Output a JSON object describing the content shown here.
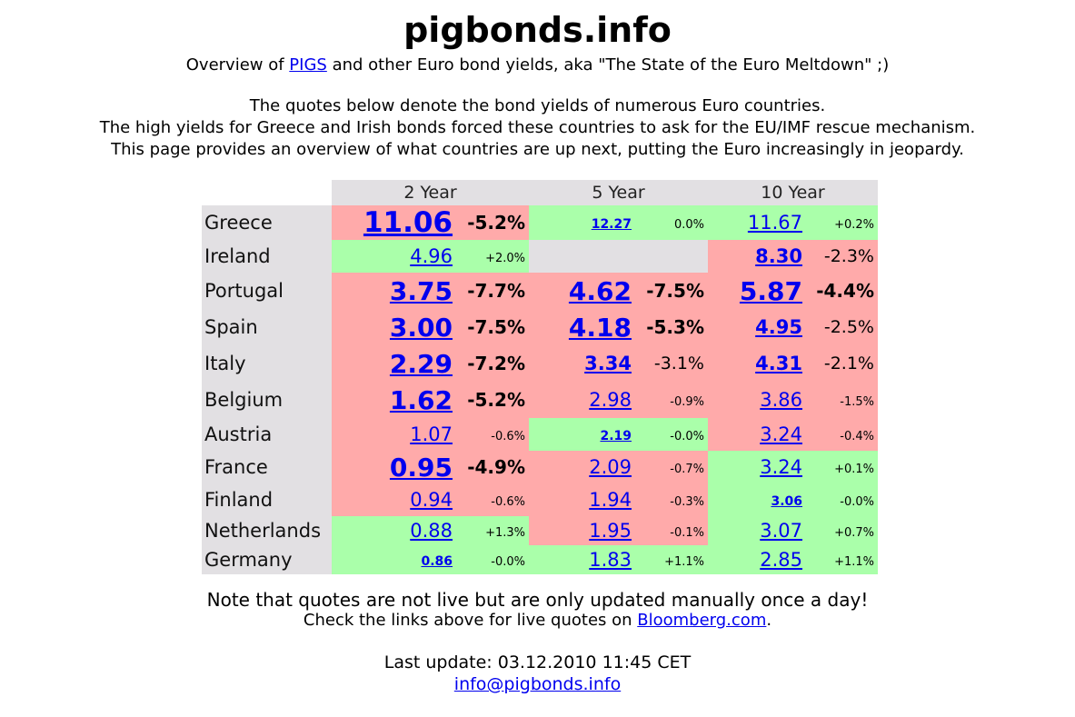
{
  "header": {
    "title": "pigbonds.info",
    "subtitle_prefix": "Overview of ",
    "subtitle_link": "PIGS",
    "subtitle_suffix": " and other Euro bond yields, aka \"The State of the Euro Meltdown\" ;)"
  },
  "intro": [
    "The quotes below denote the bond yields of numerous Euro countries.",
    "The high yields for Greece and Irish bonds forced these countries to ask for the EU/IMF rescue mechanism.",
    "This page provides an overview of what countries are up next, putting the Euro increasingly in jeopardy."
  ],
  "colors": {
    "red": "#ffaaaa",
    "green": "#aaffaa",
    "grey": "#e2e0e3",
    "link": "#0000ee"
  },
  "table": {
    "headers": [
      "2 Year",
      "5 Year",
      "10 Year"
    ],
    "rows": [
      {
        "country": "Greece",
        "y2": {
          "value": "11.06",
          "change": "-5.2%",
          "bg": "red"
        },
        "y5": {
          "value": "12.27",
          "change": "0.0%",
          "bg": "green"
        },
        "y10": {
          "value": "11.67",
          "change": "+0.2%",
          "bg": "green"
        }
      },
      {
        "country": "Ireland",
        "y2": {
          "value": "4.96",
          "change": "+2.0%",
          "bg": "green"
        },
        "y5": {
          "value": "",
          "change": "",
          "bg": "grey"
        },
        "y10": {
          "value": "8.30",
          "change": "-2.3%",
          "bg": "red"
        }
      },
      {
        "country": "Portugal",
        "y2": {
          "value": "3.75",
          "change": "-7.7%",
          "bg": "red"
        },
        "y5": {
          "value": "4.62",
          "change": "-7.5%",
          "bg": "red"
        },
        "y10": {
          "value": "5.87",
          "change": "-4.4%",
          "bg": "red"
        }
      },
      {
        "country": "Spain",
        "y2": {
          "value": "3.00",
          "change": "-7.5%",
          "bg": "red"
        },
        "y5": {
          "value": "4.18",
          "change": "-5.3%",
          "bg": "red"
        },
        "y10": {
          "value": "4.95",
          "change": "-2.5%",
          "bg": "red"
        }
      },
      {
        "country": "Italy",
        "y2": {
          "value": "2.29",
          "change": "-7.2%",
          "bg": "red"
        },
        "y5": {
          "value": "3.34",
          "change": "-3.1%",
          "bg": "red"
        },
        "y10": {
          "value": "4.31",
          "change": "-2.1%",
          "bg": "red"
        }
      },
      {
        "country": "Belgium",
        "y2": {
          "value": "1.62",
          "change": "-5.2%",
          "bg": "red"
        },
        "y5": {
          "value": "2.98",
          "change": "-0.9%",
          "bg": "red"
        },
        "y10": {
          "value": "3.86",
          "change": "-1.5%",
          "bg": "red"
        }
      },
      {
        "country": "Austria",
        "y2": {
          "value": "1.07",
          "change": "-0.6%",
          "bg": "red"
        },
        "y5": {
          "value": "2.19",
          "change": "-0.0%",
          "bg": "green"
        },
        "y10": {
          "value": "3.24",
          "change": "-0.4%",
          "bg": "red"
        }
      },
      {
        "country": "France",
        "y2": {
          "value": "0.95",
          "change": "-4.9%",
          "bg": "red"
        },
        "y5": {
          "value": "2.09",
          "change": "-0.7%",
          "bg": "red"
        },
        "y10": {
          "value": "3.24",
          "change": "+0.1%",
          "bg": "green"
        }
      },
      {
        "country": "Finland",
        "y2": {
          "value": "0.94",
          "change": "-0.6%",
          "bg": "red"
        },
        "y5": {
          "value": "1.94",
          "change": "-0.3%",
          "bg": "red"
        },
        "y10": {
          "value": "3.06",
          "change": "-0.0%",
          "bg": "green"
        }
      },
      {
        "country": "Netherlands",
        "y2": {
          "value": "0.88",
          "change": "+1.3%",
          "bg": "green"
        },
        "y5": {
          "value": "1.95",
          "change": "-0.1%",
          "bg": "red"
        },
        "y10": {
          "value": "3.07",
          "change": "+0.7%",
          "bg": "green"
        }
      },
      {
        "country": "Germany",
        "y2": {
          "value": "0.86",
          "change": "-0.0%",
          "bg": "green"
        },
        "y5": {
          "value": "1.83",
          "change": "+1.1%",
          "bg": "green"
        },
        "y10": {
          "value": "2.85",
          "change": "+1.1%",
          "bg": "green"
        }
      }
    ]
  },
  "footer": {
    "note": "Note that quotes are not live but are only updated manually once a day!",
    "check_prefix": "Check the links above for live quotes on ",
    "check_link": "Bloomberg.com",
    "check_suffix": ".",
    "last_update": "Last update: 03.12.2010 11:45 CET",
    "email": "info@pigbonds.info"
  }
}
